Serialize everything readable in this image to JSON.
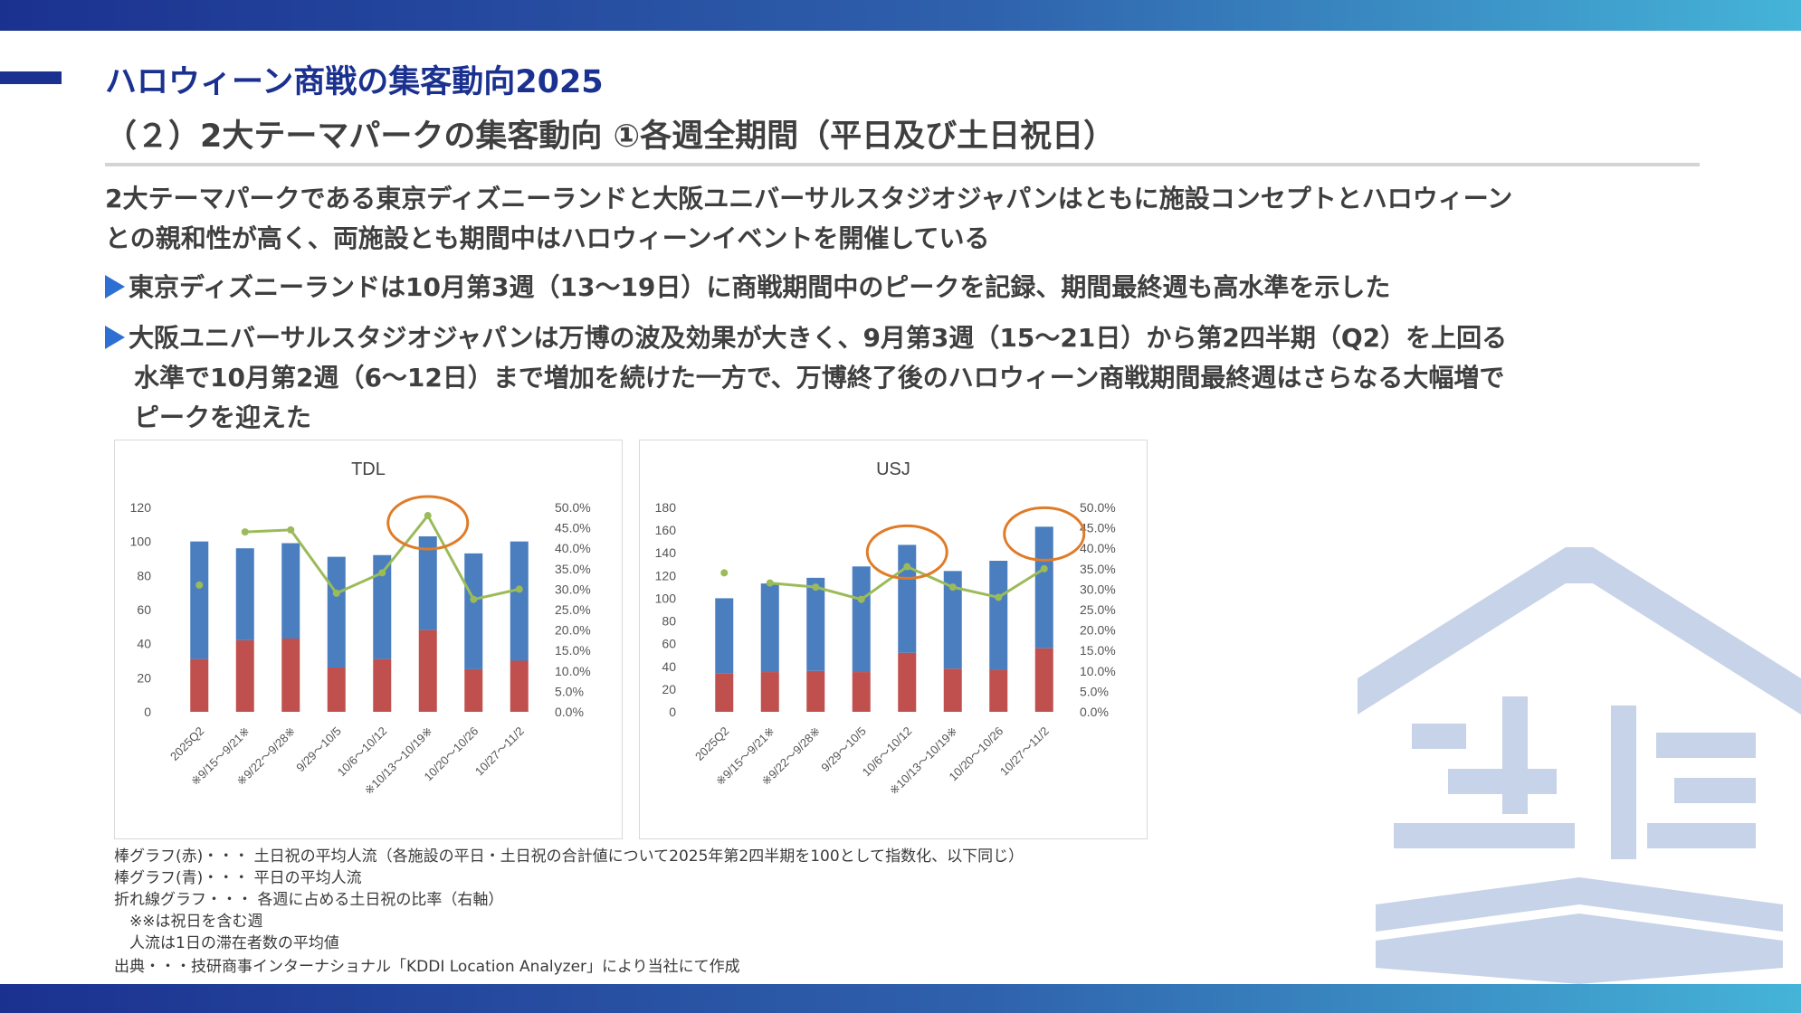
{
  "header": {
    "title_main": "ハロウィーン商戦の集客動向2025",
    "title_sub": "（２）2大テーマパークの集客動向 ①各週全期間（平日及び土日祝日）"
  },
  "summary": {
    "line1": "2大テーマパークである東京ディズニーランドと大阪ユニバーサルスタジオジャパンはともに施設コンセプトとハロウィーン",
    "line2": "との親和性が高く、両施設とも期間中はハロウィーンイベントを開催している"
  },
  "bullets": [
    {
      "lines": [
        "東京ディズニーランドは10月第3週（13～19日）に商戦期間中のピークを記録、期間最終週も高水準を示した"
      ]
    },
    {
      "lines": [
        "大阪ユニバーサルスタジオジャパンは万博の波及効果が大きく、9月第3週（15～21日）から第2四半期（Q2）を上回る",
        "水準で10月第2週（6～12日）まで増加を続けた一方で、万博終了後のハロウィーン商戦期間最終週はさらなる大幅増で",
        "ピークを迎えた"
      ]
    }
  ],
  "colors": {
    "weekday": "#4a7ebf",
    "holiday": "#c0504d",
    "ratio": "#9bbb59",
    "highlight": "#e07b28",
    "accent": "#1b3190"
  },
  "chart_data": [
    {
      "type": "bar",
      "title": "TDL",
      "categories": [
        "2025Q2",
        "※9/15～9/21※",
        "※9/22～9/28※",
        "9/29～10/5",
        "10/6～10/12",
        "※10/13～10/19※",
        "10/20～10/26",
        "10/27～11/2"
      ],
      "series": [
        {
          "name": "棒グラフ(赤)",
          "values": [
            31,
            42,
            43,
            26,
            31,
            48,
            25,
            30
          ]
        },
        {
          "name": "棒グラフ(青)",
          "values": [
            69,
            54,
            56,
            65,
            61,
            55,
            68,
            70
          ]
        },
        {
          "name": "折れ線グラフ",
          "axis": "right",
          "values": [
            31.0,
            44.0,
            44.5,
            29.0,
            34.0,
            48.0,
            27.5,
            30.0
          ]
        }
      ],
      "stack_totals": [
        100,
        96,
        99,
        91,
        92,
        103,
        93,
        100
      ],
      "ylim": [
        0,
        120
      ],
      "y_ticks": [
        "0",
        "20",
        "40",
        "60",
        "80",
        "100",
        "120"
      ],
      "y2lim": [
        0,
        50
      ],
      "y2_ticks": [
        "0.0%",
        "5.0%",
        "10.0%",
        "15.0%",
        "20.0%",
        "25.0%",
        "30.0%",
        "35.0%",
        "40.0%",
        "45.0%",
        "50.0%"
      ],
      "highlight_index": [
        5
      ]
    },
    {
      "type": "bar",
      "title": "USJ",
      "categories": [
        "2025Q2",
        "※9/15～9/21※",
        "※9/22～9/28※",
        "9/29～10/5",
        "10/6～10/12",
        "※10/13～10/19※",
        "10/20～10/26",
        "10/27～11/2"
      ],
      "series": [
        {
          "name": "棒グラフ(赤)",
          "values": [
            34,
            35,
            36,
            35,
            52,
            38,
            37,
            56
          ]
        },
        {
          "name": "棒グラフ(青)",
          "values": [
            66,
            78,
            82,
            93,
            95,
            86,
            96,
            107
          ]
        },
        {
          "name": "折れ線グラフ",
          "axis": "right",
          "values": [
            34.0,
            31.5,
            30.5,
            27.5,
            35.5,
            30.5,
            28.0,
            35.0
          ]
        }
      ],
      "stack_totals": [
        100,
        113,
        118,
        128,
        147,
        124,
        133,
        163
      ],
      "ylim": [
        0,
        180
      ],
      "y_ticks": [
        "0",
        "20",
        "40",
        "60",
        "80",
        "100",
        "120",
        "140",
        "160",
        "180"
      ],
      "y2lim": [
        0,
        50
      ],
      "y2_ticks": [
        "0.0%",
        "5.0%",
        "10.0%",
        "15.0%",
        "20.0%",
        "25.0%",
        "30.0%",
        "35.0%",
        "40.0%",
        "45.0%",
        "50.0%"
      ],
      "highlight_index": [
        4,
        7
      ]
    }
  ],
  "notes": [
    "棒グラフ(赤)・・・ 土日祝の平均人流（各施設の平日・土日祝の合計値について2025年第2四半期を100として指数化、以下同じ）",
    "棒グラフ(青)・・・ 平日の平均人流",
    "折れ線グラフ・・・ 各週に占める土日祝の比率（右軸）",
    "　※※は祝日を含む週",
    "　人流は1日の滞在者数の平均値",
    "出典・・・技研商事インターナショナル「KDDI Location Analyzer」により当社にて作成"
  ]
}
